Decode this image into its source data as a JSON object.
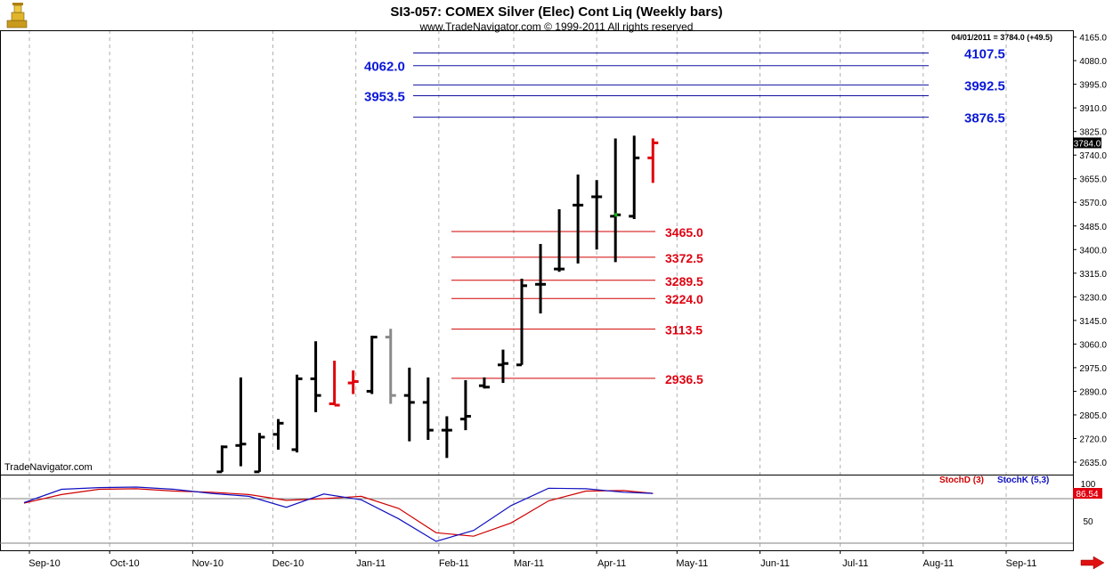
{
  "header": {
    "title": "SI3-057:  COMEX Silver (Elec) Cont Liq  (Weekly bars)",
    "copyright": "www.TradeNavigator.com © 1999-2011 All rights reserved",
    "last_quote": "04/01/2011 = 3784.0 (+49.5)",
    "watermark": "TradeNavigator.com"
  },
  "chart_data": [
    {
      "type": "ohlc",
      "title": "SI3-057:  COMEX Silver (Elec) Cont Liq  (Weekly bars)",
      "y_ticks": [
        4165.0,
        4080.0,
        3995.0,
        3910.0,
        3825.0,
        3740.0,
        3655.0,
        3570.0,
        3485.0,
        3400.0,
        3315.0,
        3230.0,
        3145.0,
        3060.0,
        2975.0,
        2890.0,
        2805.0,
        2720.0,
        2635.0
      ],
      "ylim": [
        2600,
        4185
      ],
      "last_price_label": "3784.0",
      "x_labels": [
        "Sep-10",
        "Oct-10",
        "Nov-10",
        "Dec-10",
        "Jan-11",
        "Feb-11",
        "Mar-11",
        "Apr-11",
        "May-11",
        "Jun-11",
        "Jul-11",
        "Aug-11",
        "Sep-11"
      ],
      "bars": [
        {
          "date": "2010-11-12",
          "open": 2600,
          "high": 2695,
          "low": 2600,
          "close": 2690,
          "color": "#000000"
        },
        {
          "date": "2010-11-19",
          "open": 2695,
          "high": 2940,
          "low": 2620,
          "close": 2700,
          "color": "#000000"
        },
        {
          "date": "2010-11-26",
          "open": 2600,
          "high": 2740,
          "low": 2600,
          "close": 2725,
          "color": "#000000"
        },
        {
          "date": "2010-12-03",
          "open": 2735,
          "high": 2790,
          "low": 2680,
          "close": 2775,
          "color": "#000000"
        },
        {
          "date": "2010-12-10",
          "open": 2680,
          "high": 2950,
          "low": 2670,
          "close": 2935,
          "color": "#000000"
        },
        {
          "date": "2010-12-17",
          "open": 2935,
          "high": 3070,
          "low": 2815,
          "close": 2875,
          "color": "#000000"
        },
        {
          "date": "2010-12-24",
          "open": 2845,
          "high": 3000,
          "low": 2840,
          "close": 2840,
          "color": "#e0000a"
        },
        {
          "date": "2010-12-31",
          "open": 2920,
          "high": 2965,
          "low": 2880,
          "close": 2925,
          "color": "#e0000a"
        },
        {
          "date": "2011-01-07",
          "open": 2890,
          "high": 3090,
          "low": 2880,
          "close": 3085,
          "color": "#000000"
        },
        {
          "date": "2011-01-14",
          "open": 3085,
          "high": 3115,
          "low": 2845,
          "close": 2875,
          "color": "#8a8a8a"
        },
        {
          "date": "2011-01-21",
          "open": 2875,
          "high": 2975,
          "low": 2710,
          "close": 2850,
          "color": "#000000"
        },
        {
          "date": "2011-01-28",
          "open": 2850,
          "high": 2940,
          "low": 2715,
          "close": 2750,
          "color": "#000000"
        },
        {
          "date": "2011-02-04",
          "open": 2750,
          "high": 2800,
          "low": 2650,
          "close": 2750,
          "color": "#000000"
        },
        {
          "date": "2011-02-11",
          "open": 2790,
          "high": 2930,
          "low": 2750,
          "close": 2800,
          "color": "#000000"
        },
        {
          "date": "2011-02-18",
          "open": 2910,
          "high": 2940,
          "low": 2900,
          "close": 2905,
          "color": "#000000"
        },
        {
          "date": "2011-02-25",
          "open": 2985,
          "high": 3040,
          "low": 2920,
          "close": 2990,
          "color": "#000000"
        },
        {
          "date": "2011-03-04",
          "open": 2985,
          "high": 3295,
          "low": 2985,
          "close": 3270,
          "color": "#000000"
        },
        {
          "date": "2011-03-11",
          "open": 3275,
          "high": 3420,
          "low": 3170,
          "close": 3275,
          "color": "#000000"
        },
        {
          "date": "2011-03-18",
          "open": 3330,
          "high": 3545,
          "low": 3320,
          "close": 3330,
          "color": "#000000"
        },
        {
          "date": "2011-03-25",
          "open": 3560,
          "high": 3670,
          "low": 3350,
          "close": 3560,
          "color": "#000000"
        },
        {
          "date": "2011-04-01",
          "open": 3590,
          "high": 3650,
          "low": 3400,
          "close": 3590,
          "color": "#000000"
        },
        {
          "date": "2011-04-08",
          "open": 3520,
          "high": 3800,
          "low": 3355,
          "close": 3525,
          "color": "#000000"
        },
        {
          "date": "2011-04-15",
          "open": 3520,
          "high": 3810,
          "low": 3510,
          "close": 3730,
          "color": "#000000"
        },
        {
          "date": "2011-04-22",
          "open": 3730,
          "high": 3800,
          "low": 3640,
          "close": 3784,
          "color": "#e0000a"
        }
      ]
    },
    {
      "type": "horizontal_levels",
      "resistance": [
        {
          "value": 4107.5,
          "label": "4107.5"
        },
        {
          "value": 4062.0,
          "label": "4062.0"
        },
        {
          "value": 3992.5,
          "label": "3992.5"
        },
        {
          "value": 3953.5,
          "label": "3953.5"
        },
        {
          "value": 3876.5,
          "label": "3876.5"
        }
      ],
      "support": [
        {
          "value": 3465.0,
          "label": "3465.0"
        },
        {
          "value": 3372.5,
          "label": "3372.5"
        },
        {
          "value": 3289.5,
          "label": "3289.5"
        },
        {
          "value": 3224.0,
          "label": "3224.0"
        },
        {
          "value": 3113.5,
          "label": "3113.5"
        },
        {
          "value": 2936.5,
          "label": "2936.5"
        }
      ]
    },
    {
      "type": "line",
      "title": "Stochastics",
      "y_ticks": [
        100,
        50
      ],
      "ylim": [
        0,
        115
      ],
      "last_value_label": "86.54",
      "series": [
        {
          "name": "StochD (3)",
          "color": "#d00000",
          "x": [
            "2010-08-30",
            "2010-09-13",
            "2010-09-27",
            "2010-10-11",
            "2010-10-25",
            "2010-11-08",
            "2010-11-22",
            "2010-12-06",
            "2010-12-20",
            "2011-01-03",
            "2011-01-17",
            "2011-01-31",
            "2011-02-14",
            "2011-02-28",
            "2011-03-14",
            "2011-03-28",
            "2011-04-11",
            "2011-04-22"
          ],
          "values": [
            69,
            84,
            93,
            94,
            90,
            88,
            84,
            74,
            77,
            81,
            60,
            18,
            12,
            35,
            73,
            90,
            91,
            86
          ]
        },
        {
          "name": "StochK (5,3)",
          "color": "#1010c0",
          "x": [
            "2010-08-30",
            "2010-09-13",
            "2010-09-27",
            "2010-10-11",
            "2010-10-25",
            "2010-11-08",
            "2010-11-22",
            "2010-12-06",
            "2010-12-20",
            "2011-01-03",
            "2011-01-17",
            "2011-01-31",
            "2011-02-14",
            "2011-02-28",
            "2011-03-14",
            "2011-03-28",
            "2011-04-11",
            "2011-04-22"
          ],
          "values": [
            70,
            93,
            96,
            97,
            93,
            86,
            81,
            62,
            85,
            75,
            42,
            3,
            22,
            65,
            95,
            94,
            88,
            86
          ]
        }
      ]
    }
  ]
}
